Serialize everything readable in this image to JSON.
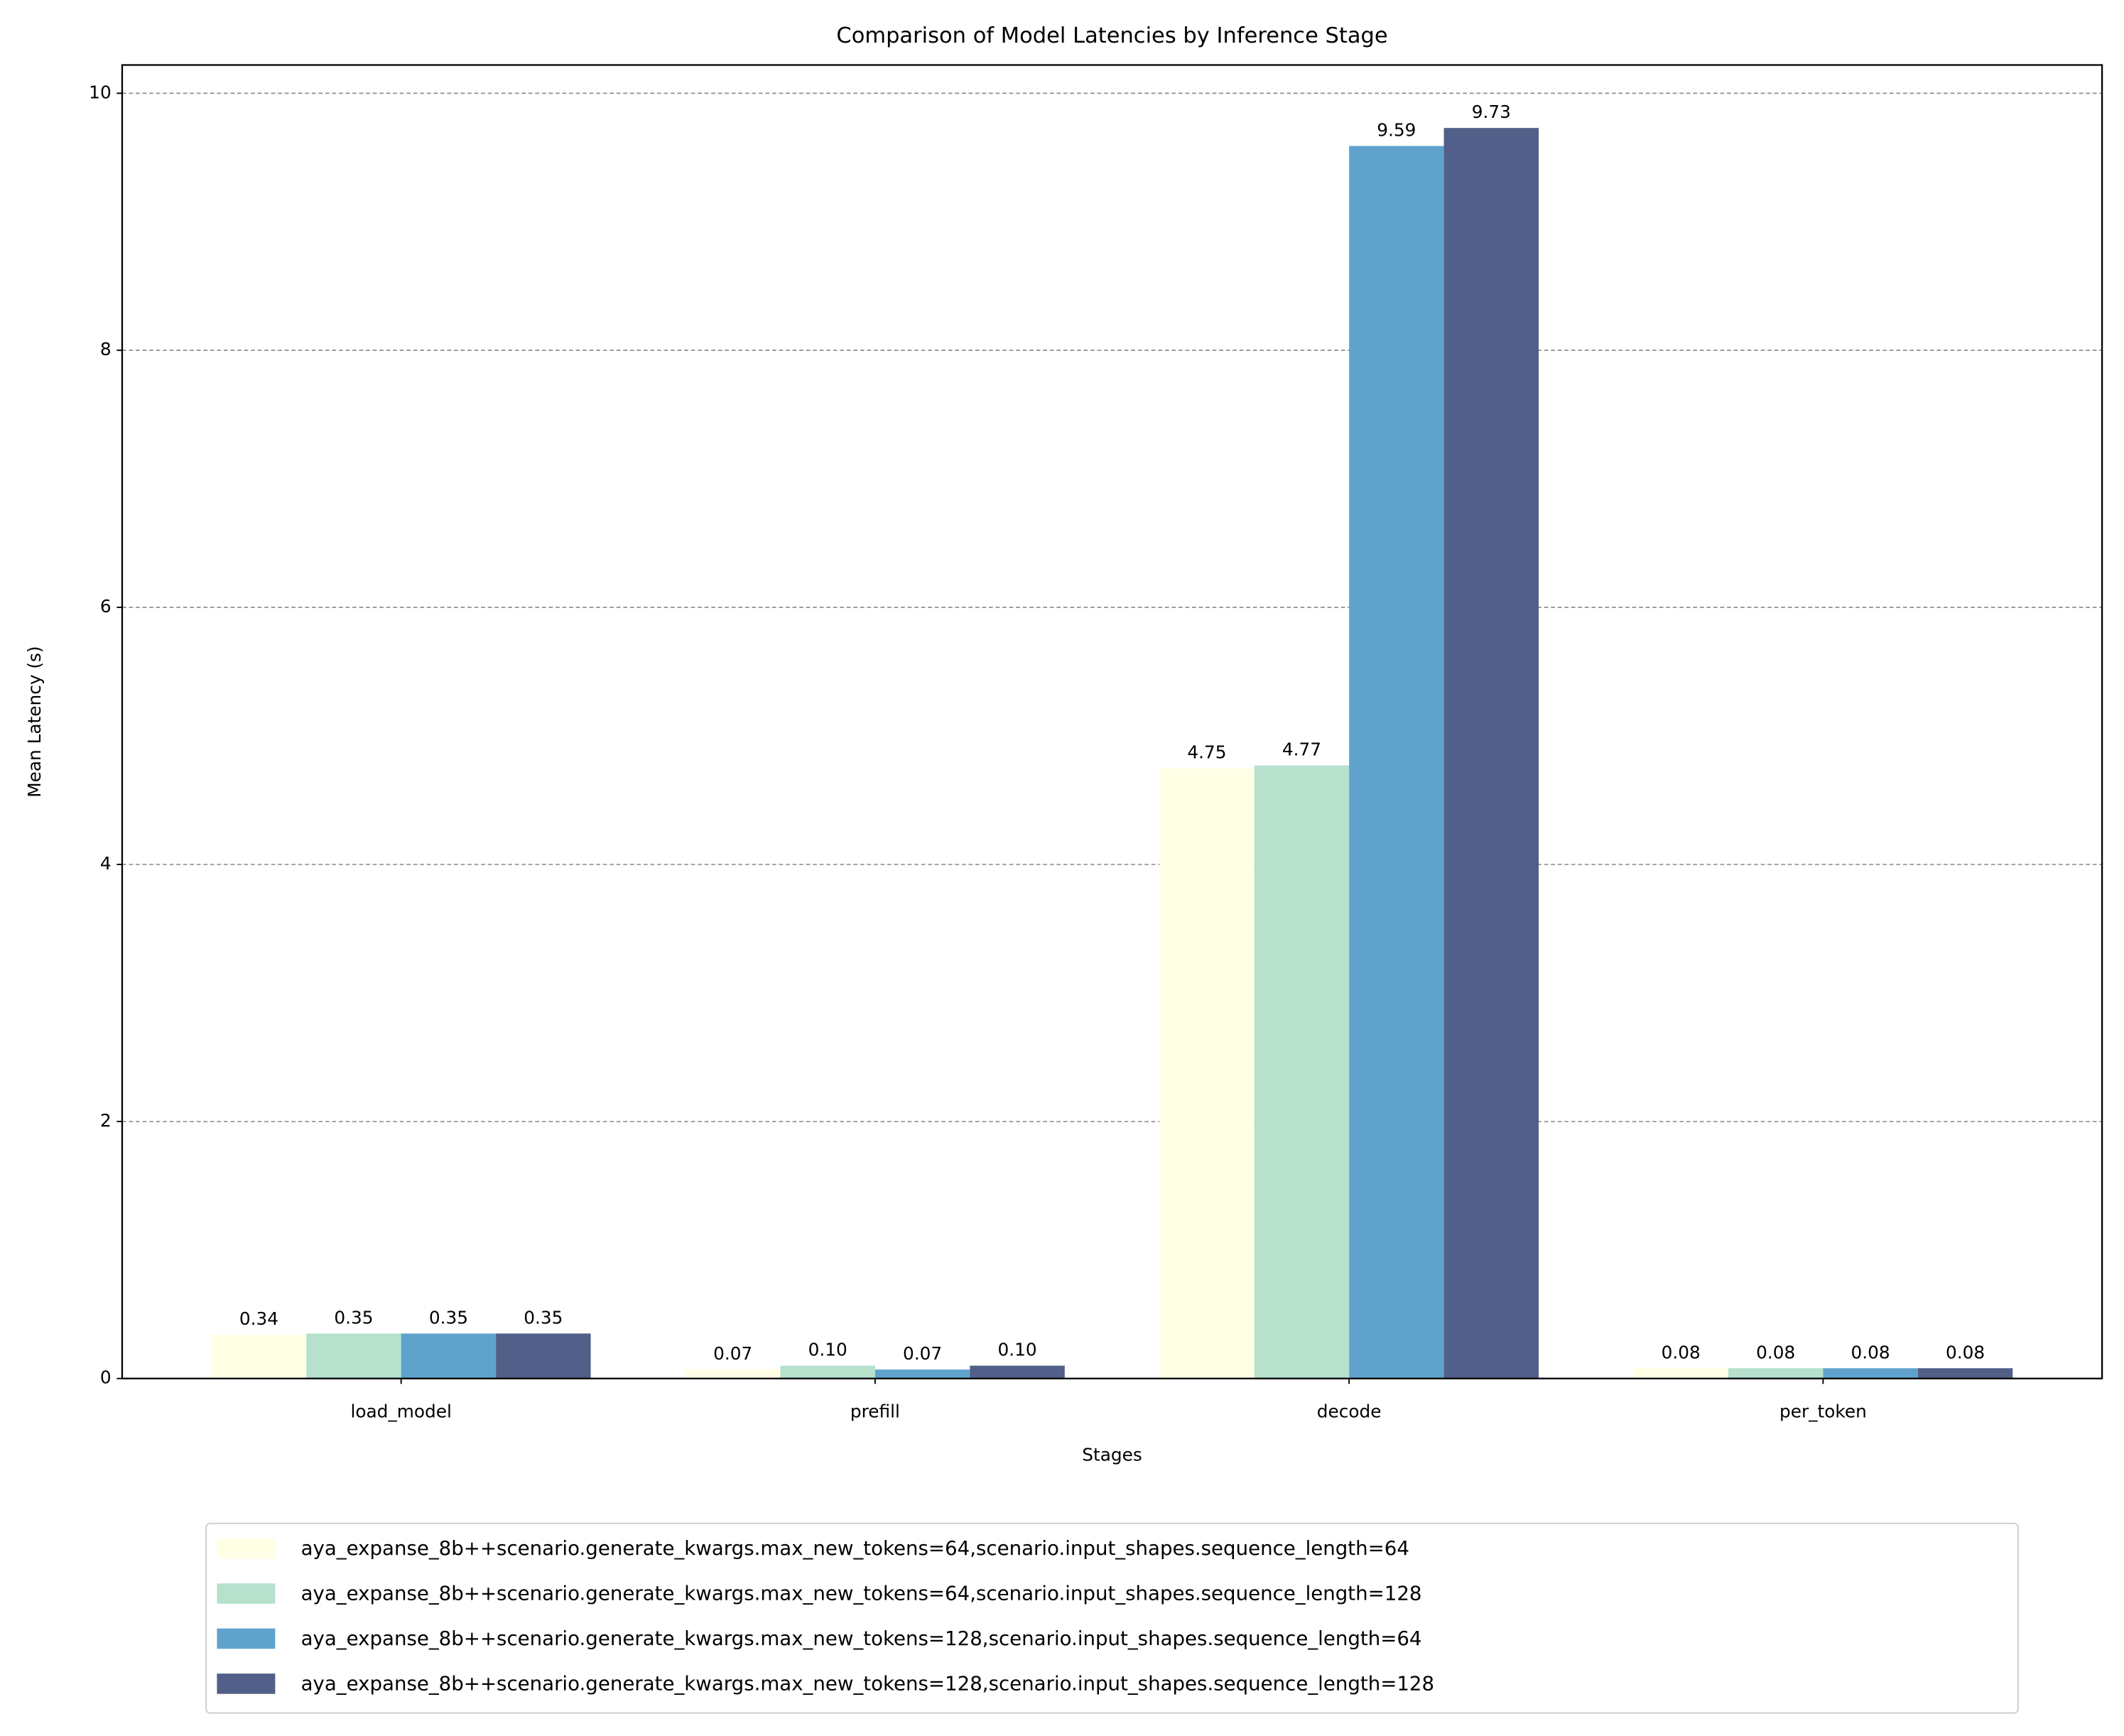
{
  "chart_data": {
    "type": "bar",
    "title": "Comparison of Model Latencies by Inference Stage",
    "x_label": "Stages",
    "y_label": "Mean Latency (s)",
    "categories": [
      "load_model",
      "prefill",
      "decode",
      "per_token"
    ],
    "series": [
      {
        "name": "aya_expanse_8b++scenario.generate_kwargs.max_new_tokens=64,scenario.input_shapes.sequence_length=64",
        "color": "#ffffe5",
        "values": [
          0.34,
          0.07,
          4.75,
          0.08
        ],
        "value_labels": [
          "0.34",
          "0.07",
          "4.75",
          "0.08"
        ]
      },
      {
        "name": "aya_expanse_8b++scenario.generate_kwargs.max_new_tokens=64,scenario.input_shapes.sequence_length=128",
        "color": "#b5e1cd",
        "values": [
          0.35,
          0.1,
          4.77,
          0.08
        ],
        "value_labels": [
          "0.35",
          "0.10",
          "4.77",
          "0.08"
        ]
      },
      {
        "name": "aya_expanse_8b++scenario.generate_kwargs.max_new_tokens=128,scenario.input_shapes.sequence_length=64",
        "color": "#5fa3cd",
        "values": [
          0.35,
          0.07,
          9.59,
          0.08
        ],
        "value_labels": [
          "0.35",
          "0.07",
          "9.59",
          "0.08"
        ]
      },
      {
        "name": "aya_expanse_8b++scenario.generate_kwargs.max_new_tokens=128,scenario.input_shapes.sequence_length=128",
        "color": "#525f88",
        "values": [
          0.35,
          0.1,
          9.73,
          0.08
        ],
        "value_labels": [
          "0.35",
          "0.10",
          "9.73",
          "0.08"
        ]
      }
    ],
    "ylim": [
      0,
      10.22
    ],
    "yticks": [
      0,
      2,
      4,
      6,
      8,
      10
    ],
    "grid": true,
    "legend": "below"
  }
}
